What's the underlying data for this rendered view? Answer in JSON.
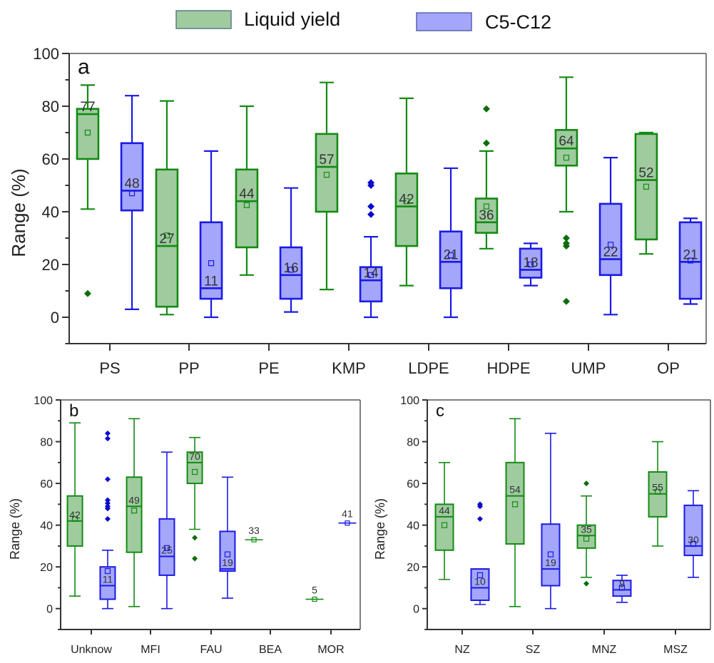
{
  "legend": {
    "items": [
      {
        "label": "Liquid yield",
        "fill": "#9fcb9f",
        "stroke": "#5a7a8a"
      },
      {
        "label": "C5-C12",
        "fill": "#a3a6fa",
        "stroke": "#5a63b0"
      }
    ]
  },
  "colors": {
    "green_stroke": "#138a13",
    "green_fill": "#9fcb9f",
    "blue_stroke": "#1a1ae6",
    "blue_fill": "#a3a6fa",
    "green_outlier": "#0a6e0a",
    "blue_outlier": "#0a0ad0"
  },
  "chart_data": [
    {
      "type": "box",
      "panel_label": "a",
      "title": "",
      "xlabel": "",
      "ylabel": "Range (%)",
      "ylim": [
        -10,
        100
      ],
      "yticks": [
        0,
        20,
        40,
        60,
        80,
        100
      ],
      "categories": [
        "PS",
        "PP",
        "PE",
        "KMP",
        "LDPE",
        "HDPE",
        "UMP",
        "OP"
      ],
      "series": [
        {
          "name": "Liquid yield",
          "boxes": [
            {
              "min": 41,
              "q1": 60,
              "median": 77,
              "q3": 79,
              "max": 88,
              "mean": 70,
              "outliers": [
                9
              ],
              "label": "77"
            },
            {
              "min": 1,
              "q1": 4,
              "median": 27,
              "q3": 56,
              "max": 82,
              "mean": 31,
              "outliers": [],
              "label": "27"
            },
            {
              "min": 16,
              "q1": 26.5,
              "median": 44,
              "q3": 56,
              "max": 80,
              "mean": 42.5,
              "outliers": [],
              "label": "44"
            },
            {
              "min": 10.5,
              "q1": 40,
              "median": 57,
              "q3": 69.5,
              "max": 89,
              "mean": 54,
              "outliers": [],
              "label": "57"
            },
            {
              "min": 12,
              "q1": 27,
              "median": 42,
              "q3": 54.5,
              "max": 83,
              "mean": 44,
              "outliers": [],
              "label": "42"
            },
            {
              "min": 26,
              "q1": 32,
              "median": 36,
              "q3": 45,
              "max": 63,
              "mean": 42,
              "outliers": [
                79,
                66
              ],
              "label": "36"
            },
            {
              "min": 40,
              "q1": 57.5,
              "median": 64,
              "q3": 71,
              "max": 91,
              "mean": 60.5,
              "outliers": [
                30,
                28,
                27,
                6
              ],
              "label": "64"
            },
            {
              "min": 24,
              "q1": 29.5,
              "median": 52,
              "q3": 69.5,
              "max": 70,
              "mean": 49.5,
              "outliers": [],
              "label": "52"
            }
          ]
        },
        {
          "name": "C5-C12",
          "boxes": [
            {
              "min": 3,
              "q1": 40.5,
              "median": 48,
              "q3": 66,
              "max": 84,
              "mean": 47,
              "outliers": [],
              "label": "48"
            },
            {
              "min": 0,
              "q1": 7,
              "median": 11,
              "q3": 36,
              "max": 63,
              "mean": 20.5,
              "outliers": [],
              "label": "11"
            },
            {
              "min": 2,
              "q1": 7,
              "median": 16,
              "q3": 26.5,
              "max": 49,
              "mean": 18,
              "outliers": [],
              "label": "16"
            },
            {
              "min": 0,
              "q1": 6,
              "median": 14,
              "q3": 19,
              "max": 30.5,
              "mean": 16,
              "outliers": [
                51,
                50,
                42,
                39
              ],
              "label": "14"
            },
            {
              "min": 0,
              "q1": 11,
              "median": 21,
              "q3": 32.5,
              "max": 56.5,
              "mean": 23.5,
              "outliers": [],
              "label": "21"
            },
            {
              "min": 12,
              "q1": 15,
              "median": 18,
              "q3": 26,
              "max": 28,
              "mean": 20,
              "outliers": [],
              "label": "18"
            },
            {
              "min": 1,
              "q1": 16,
              "median": 22,
              "q3": 43,
              "max": 60.5,
              "mean": 27.5,
              "outliers": [],
              "label": "22"
            },
            {
              "min": 5,
              "q1": 7,
              "median": 21,
              "q3": 36,
              "max": 37.5,
              "mean": 21.5,
              "outliers": [],
              "label": "21"
            }
          ]
        }
      ]
    },
    {
      "type": "box",
      "panel_label": "b",
      "title": "",
      "xlabel": "",
      "ylabel": "Range (%)",
      "ylim": [
        -10,
        100
      ],
      "yticks": [
        0,
        20,
        40,
        60,
        80,
        100
      ],
      "categories": [
        "Unknow",
        "MFI",
        "FAU",
        "BEA",
        "MOR"
      ],
      "series": [
        {
          "name": "Liquid yield",
          "boxes": [
            {
              "min": 6,
              "q1": 30,
              "median": 42,
              "q3": 54,
              "max": 89,
              "mean": 43,
              "outliers": [],
              "label": "42"
            },
            {
              "min": 1,
              "q1": 27,
              "median": 49,
              "q3": 63,
              "max": 91,
              "mean": 47,
              "outliers": [],
              "label": "49"
            },
            {
              "min": 38,
              "q1": 60,
              "median": 70,
              "q3": 75,
              "max": 82,
              "mean": 65.5,
              "outliers": [
                34,
                24
              ],
              "label": "70"
            },
            {
              "min": 33,
              "q1": 33,
              "median": 33,
              "q3": 33,
              "max": 33,
              "mean": 33,
              "outliers": [],
              "label": "33"
            },
            {
              "min": 4.5,
              "q1": 4.5,
              "median": 4.5,
              "q3": 4.5,
              "max": 4.5,
              "mean": 4.5,
              "outliers": [],
              "label": "5"
            }
          ]
        },
        {
          "name": "C5-C12",
          "boxes": [
            {
              "min": 0,
              "q1": 4.5,
              "median": 11,
              "q3": 20,
              "max": 28,
              "mean": 18,
              "outliers": [
                84,
                81.5,
                62,
                52,
                50.5,
                49,
                48,
                43
              ],
              "label": "11"
            },
            {
              "min": 0,
              "q1": 16,
              "median": 25,
              "q3": 43,
              "max": 75,
              "mean": 29,
              "outliers": [],
              "label": "25"
            },
            {
              "min": 5,
              "q1": 18,
              "median": 19,
              "q3": 37,
              "max": 63,
              "mean": 26,
              "outliers": [],
              "label": "19"
            },
            null,
            {
              "min": 41,
              "q1": 41,
              "median": 41,
              "q3": 41,
              "max": 41,
              "mean": 41,
              "outliers": [],
              "label": "41"
            }
          ]
        }
      ]
    },
    {
      "type": "box",
      "panel_label": "c",
      "title": "",
      "xlabel": "",
      "ylabel": "Range (%)",
      "ylim": [
        -10,
        100
      ],
      "yticks": [
        0,
        20,
        40,
        60,
        80,
        100
      ],
      "categories": [
        "NZ",
        "SZ",
        "MNZ",
        "MSZ"
      ],
      "series": [
        {
          "name": "Liquid yield",
          "boxes": [
            {
              "min": 14,
              "q1": 28,
              "median": 44,
              "q3": 50,
              "max": 70,
              "mean": 40,
              "outliers": [],
              "label": "44"
            },
            {
              "min": 1,
              "q1": 31,
              "median": 54,
              "q3": 70,
              "max": 91,
              "mean": 50,
              "outliers": [],
              "label": "54"
            },
            {
              "min": 15,
              "q1": 29,
              "median": 35,
              "q3": 40,
              "max": 54,
              "mean": 33.5,
              "outliers": [
                60,
                12
              ],
              "label": "35"
            },
            {
              "min": 30,
              "q1": 44,
              "median": 55,
              "q3": 65.5,
              "max": 80,
              "mean": 56,
              "outliers": [],
              "label": "55"
            }
          ]
        },
        {
          "name": "C5-C12",
          "boxes": [
            {
              "min": 2,
              "q1": 4,
              "median": 10,
              "q3": 19,
              "max": 19,
              "mean": 16,
              "outliers": [
                50,
                49,
                43
              ],
              "label": "10"
            },
            {
              "min": 0,
              "q1": 11,
              "median": 19,
              "q3": 40.5,
              "max": 84,
              "mean": 26,
              "outliers": [],
              "label": "19"
            },
            {
              "min": 3,
              "q1": 6,
              "median": 9,
              "q3": 13.5,
              "max": 16,
              "mean": 10,
              "outliers": [],
              "label": "9"
            },
            {
              "min": 15,
              "q1": 25.5,
              "median": 30,
              "q3": 49.5,
              "max": 56.5,
              "mean": 31,
              "outliers": [],
              "label": "30"
            }
          ]
        }
      ]
    }
  ]
}
